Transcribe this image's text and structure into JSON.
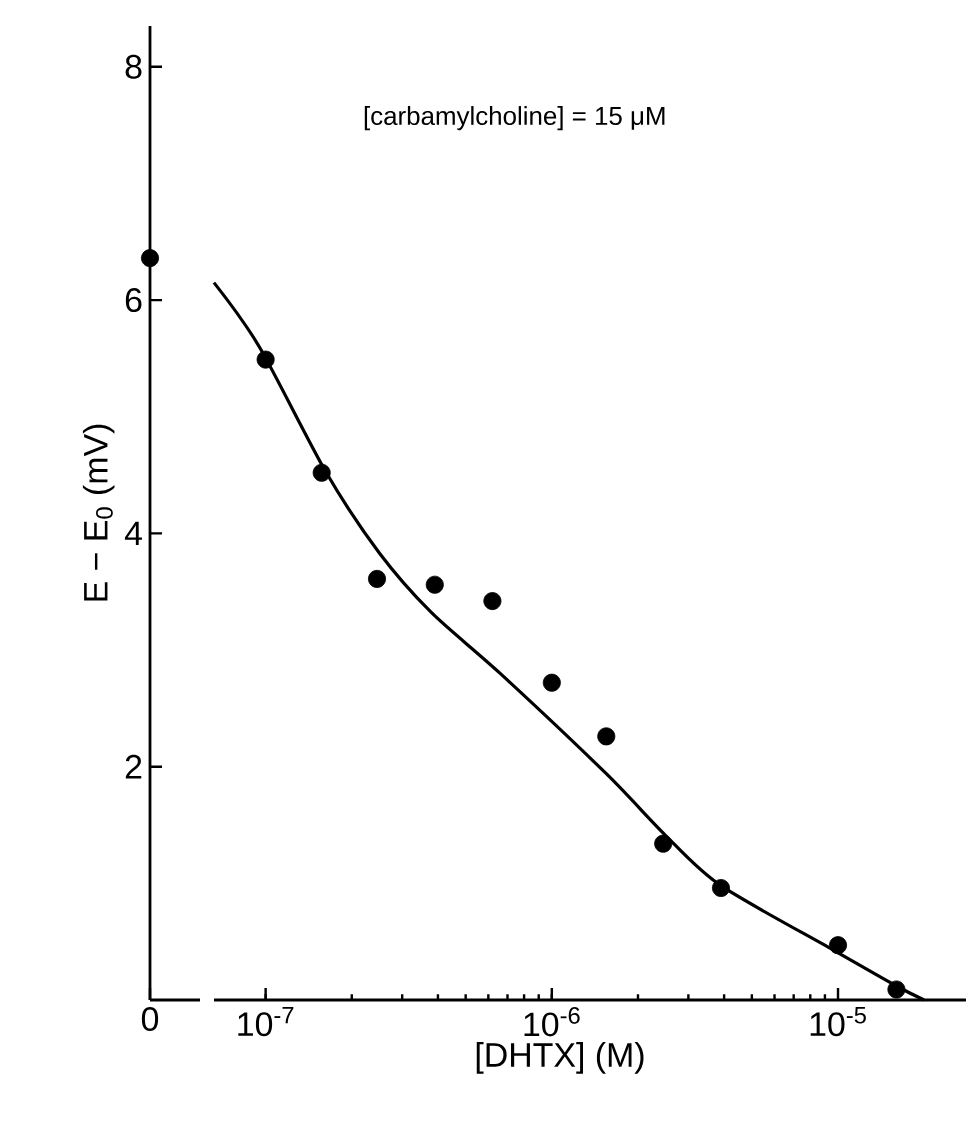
{
  "chart_data": [
    {
      "type": "scatter",
      "categories": [
        "0"
      ],
      "values": [
        6.36
      ],
      "color": "#000000",
      "marker": "circle",
      "ylim": [
        0,
        8.35
      ],
      "yticks": [
        2,
        4,
        6,
        8
      ],
      "ylabel": "E − E$_{0}$ (mV)"
    },
    {
      "type": "line",
      "log": "x",
      "xlim": [
        6.6e-08,
        2.8e-05
      ],
      "xticks": [
        {
          "value": 1e-07,
          "label": "10$^{-7}$"
        },
        {
          "value": 1e-06,
          "label": "10$^{-6}$"
        },
        {
          "value": 1e-05,
          "label": "10$^{-5}$"
        }
      ],
      "ylim": [
        0,
        8
      ],
      "yticks": [
        2,
        4,
        6,
        8
      ],
      "tick_labels": "x",
      "xlabel": "[DHTX] (M)",
      "annotations": [
        "[carbamylcholine] = 15 μM"
      ],
      "series": [
        {
          "type": "scatter",
          "color": "#000000",
          "marker": "circle",
          "x": [
            1e-07,
            1.57e-07,
            2.45e-07,
            3.9e-07,
            6.2e-07,
            1e-06,
            1.55e-06,
            2.45e-06,
            3.9e-06,
            1e-05,
            1.6e-05
          ],
          "values": [
            5.49,
            4.52,
            3.61,
            3.56,
            3.42,
            2.72,
            2.26,
            1.34,
            0.96,
            0.47,
            0.09
          ]
        },
        {
          "type": "line",
          "color": "#000000",
          "line_style": "solid",
          "x": [
            6.6e-08,
            9.5e-08,
            1.63e-07,
            2.5e-07,
            3.8e-07,
            6.6e-07,
            1.55e-06,
            2.5e-06,
            3.9e-06,
            9.6e-06,
            1.6e-05,
            2e-05
          ],
          "values": [
            6.15,
            5.6,
            4.52,
            3.83,
            3.32,
            2.8,
            1.94,
            1.41,
            0.98,
            0.43,
            0.12,
            0
          ]
        }
      ]
    }
  ]
}
